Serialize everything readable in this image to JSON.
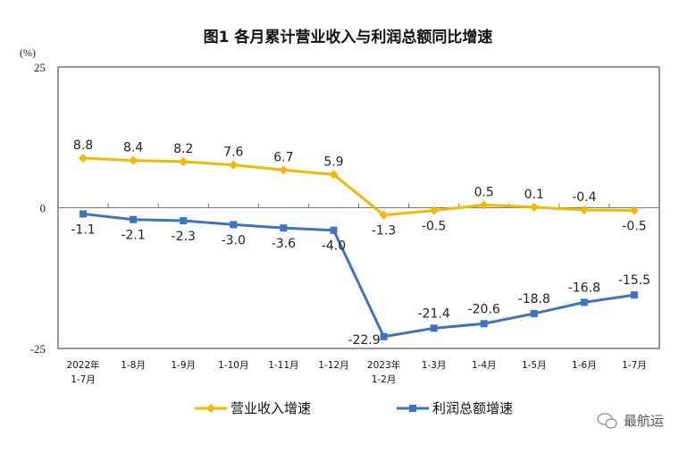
{
  "chart_data": {
    "type": "line",
    "title": "图1  各月累计营业收入与利润总额同比增速",
    "ylabel": "(%)",
    "ylim": [
      -25,
      25
    ],
    "yticks": [
      "25",
      "0",
      "-25"
    ],
    "grid": false,
    "legend_position": "bottom",
    "categories": [
      [
        "2022年",
        "1-7月"
      ],
      [
        "1-8月"
      ],
      [
        "1-9月"
      ],
      [
        "1-10月"
      ],
      [
        "1-11月"
      ],
      [
        "1-12月"
      ],
      [
        "2023年",
        "1-2月"
      ],
      [
        "1-3月"
      ],
      [
        "1-4月"
      ],
      [
        "1-5月"
      ],
      [
        "1-6月"
      ],
      [
        "1-7月"
      ]
    ],
    "series": [
      {
        "name": "营业收入增速",
        "color": "#F5B800",
        "marker": "diamond",
        "values": [
          8.8,
          8.4,
          8.2,
          7.6,
          6.7,
          5.9,
          -1.3,
          -0.5,
          0.5,
          0.1,
          -0.4,
          -0.5
        ],
        "labels": [
          "8.8",
          "8.4",
          "8.2",
          "7.6",
          "6.7",
          "5.9",
          "-1.3",
          "-0.5",
          "0.5",
          "0.1",
          "-0.4",
          "-0.5"
        ]
      },
      {
        "name": "利润总额增速",
        "color": "#3D73C2",
        "marker": "square",
        "values": [
          -1.1,
          -2.1,
          -2.3,
          -3.0,
          -3.6,
          -4.0,
          -22.9,
          -21.4,
          -20.6,
          -18.8,
          -16.8,
          -15.5
        ],
        "labels": [
          "-1.1",
          "-2.1",
          "-2.3",
          "-3.0",
          "-3.6",
          "-4.0",
          "-22.9",
          "-21.4",
          "-20.6",
          "-18.8",
          "-16.8",
          "-15.5"
        ]
      }
    ]
  },
  "watermark": "最航运"
}
